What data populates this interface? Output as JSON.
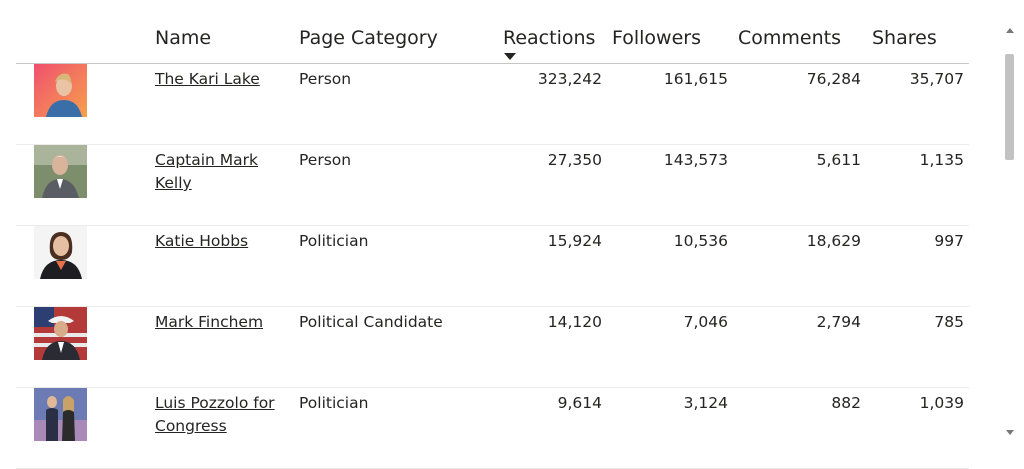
{
  "columns": {
    "name": "Name",
    "category": "Page Category",
    "reactions": "Reactions",
    "followers": "Followers",
    "comments": "Comments",
    "shares": "Shares"
  },
  "sort": {
    "column": "reactions",
    "direction": "descending"
  },
  "rows": [
    {
      "name": "The Kari Lake",
      "category": "Person",
      "reactions": "323,242",
      "followers": "161,615",
      "comments": "76,284",
      "shares": "35,707",
      "avatar_bg": "#e8604c"
    },
    {
      "name": "Captain Mark Kelly",
      "category": "Person",
      "reactions": "27,350",
      "followers": "143,573",
      "comments": "5,611",
      "shares": "1,135",
      "avatar_bg": "#8a9a7a"
    },
    {
      "name": "Katie Hobbs",
      "category": "Politician",
      "reactions": "15,924",
      "followers": "10,536",
      "comments": "18,629",
      "shares": "997",
      "avatar_bg": "#f2f2f2"
    },
    {
      "name": "Mark Finchem",
      "category": "Political Candidate",
      "reactions": "14,120",
      "followers": "7,046",
      "comments": "2,794",
      "shares": "785",
      "avatar_bg": "#9b3a3a"
    },
    {
      "name": "Luis Pozzolo for Congress",
      "category": "Politician",
      "reactions": "9,614",
      "followers": "3,124",
      "comments": "882",
      "shares": "1,039",
      "avatar_bg": "#6b76a8"
    }
  ]
}
